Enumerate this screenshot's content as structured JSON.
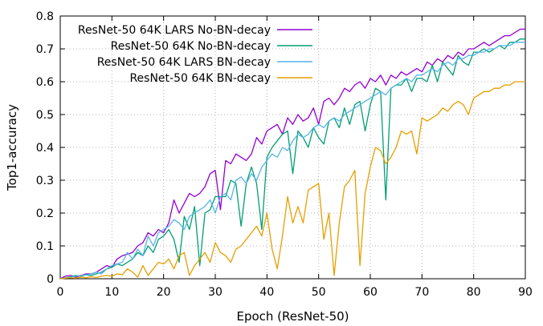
{
  "chart_data": {
    "type": "line",
    "title": "",
    "xlabel": "Epoch (ResNet-50)",
    "ylabel": "Top1-accuracy",
    "xlim": [
      0,
      90
    ],
    "ylim": [
      0,
      0.8
    ],
    "xticks": [
      0,
      10,
      20,
      30,
      40,
      50,
      60,
      70,
      80,
      90
    ],
    "yticks": [
      0,
      0.1,
      0.2,
      0.3,
      0.4,
      0.5,
      0.6,
      0.7,
      0.8
    ],
    "xtick_labels": [
      "0",
      "10",
      "20",
      "30",
      "40",
      "50",
      "60",
      "70",
      "80",
      "90"
    ],
    "ytick_labels": [
      "0",
      "0.1",
      "0.2",
      "0.3",
      "0.4",
      "0.5",
      "0.6",
      "0.7",
      "0.8"
    ],
    "grid": true,
    "legend_position": "top-left",
    "series": [
      {
        "name": "ResNet-50 64K LARS No-BN-decay",
        "color": "#9400d3",
        "x": [
          0,
          1,
          2,
          3,
          4,
          5,
          6,
          7,
          8,
          9,
          10,
          11,
          12,
          13,
          14,
          15,
          16,
          17,
          18,
          19,
          20,
          21,
          22,
          23,
          24,
          25,
          26,
          27,
          28,
          29,
          30,
          31,
          32,
          33,
          34,
          35,
          36,
          37,
          38,
          39,
          40,
          41,
          42,
          43,
          44,
          45,
          46,
          47,
          48,
          49,
          50,
          51,
          52,
          53,
          54,
          55,
          56,
          57,
          58,
          59,
          60,
          61,
          62,
          63,
          64,
          65,
          66,
          67,
          68,
          69,
          70,
          71,
          72,
          73,
          74,
          75,
          76,
          77,
          78,
          79,
          80,
          81,
          82,
          83,
          84,
          85,
          86,
          87,
          88,
          89,
          90
        ],
        "y": [
          0.0,
          0.008,
          0.01,
          0.005,
          0.01,
          0.015,
          0.015,
          0.02,
          0.03,
          0.04,
          0.035,
          0.06,
          0.07,
          0.075,
          0.08,
          0.1,
          0.11,
          0.14,
          0.13,
          0.15,
          0.14,
          0.17,
          0.24,
          0.2,
          0.23,
          0.26,
          0.25,
          0.26,
          0.28,
          0.32,
          0.33,
          0.21,
          0.36,
          0.35,
          0.38,
          0.37,
          0.36,
          0.38,
          0.43,
          0.41,
          0.45,
          0.46,
          0.47,
          0.44,
          0.49,
          0.47,
          0.5,
          0.48,
          0.49,
          0.52,
          0.47,
          0.54,
          0.55,
          0.53,
          0.55,
          0.58,
          0.57,
          0.59,
          0.6,
          0.58,
          0.61,
          0.6,
          0.62,
          0.59,
          0.62,
          0.61,
          0.63,
          0.62,
          0.63,
          0.64,
          0.63,
          0.66,
          0.65,
          0.67,
          0.66,
          0.68,
          0.67,
          0.69,
          0.68,
          0.7,
          0.7,
          0.71,
          0.72,
          0.71,
          0.72,
          0.73,
          0.74,
          0.74,
          0.75,
          0.76,
          0.76
        ]
      },
      {
        "name": "ResNet-50 64K No-BN-decay",
        "color": "#009e73",
        "x": [
          0,
          1,
          2,
          3,
          4,
          5,
          6,
          7,
          8,
          9,
          10,
          11,
          12,
          13,
          14,
          15,
          16,
          17,
          18,
          19,
          20,
          21,
          22,
          23,
          24,
          25,
          26,
          27,
          28,
          29,
          30,
          31,
          32,
          33,
          34,
          35,
          36,
          37,
          38,
          39,
          40,
          41,
          42,
          43,
          44,
          45,
          46,
          47,
          48,
          49,
          50,
          51,
          52,
          53,
          54,
          55,
          56,
          57,
          58,
          59,
          60,
          61,
          62,
          63,
          64,
          65,
          66,
          67,
          68,
          69,
          70,
          71,
          72,
          73,
          74,
          75,
          76,
          77,
          78,
          79,
          80,
          81,
          82,
          83,
          84,
          85,
          86,
          87,
          88,
          89,
          90
        ],
        "y": [
          0.0,
          0.003,
          0.006,
          0.01,
          0.008,
          0.012,
          0.01,
          0.015,
          0.02,
          0.03,
          0.035,
          0.045,
          0.04,
          0.05,
          0.06,
          0.08,
          0.07,
          0.1,
          0.08,
          0.12,
          0.13,
          0.15,
          0.12,
          0.05,
          0.19,
          0.15,
          0.22,
          0.04,
          0.2,
          0.21,
          0.25,
          0.25,
          0.25,
          0.3,
          0.29,
          0.16,
          0.29,
          0.34,
          0.29,
          0.15,
          0.37,
          0.4,
          0.42,
          0.44,
          0.45,
          0.32,
          0.45,
          0.43,
          0.4,
          0.46,
          0.43,
          0.41,
          0.48,
          0.49,
          0.46,
          0.52,
          0.47,
          0.53,
          0.54,
          0.45,
          0.53,
          0.58,
          0.57,
          0.24,
          0.58,
          0.59,
          0.59,
          0.61,
          0.57,
          0.61,
          0.61,
          0.6,
          0.65,
          0.6,
          0.66,
          0.64,
          0.62,
          0.68,
          0.66,
          0.65,
          0.69,
          0.69,
          0.7,
          0.69,
          0.7,
          0.71,
          0.7,
          0.72,
          0.72,
          0.73,
          0.73
        ]
      },
      {
        "name": "ResNet-50 64K LARS BN-decay",
        "color": "#56b4e9",
        "x": [
          0,
          1,
          2,
          3,
          4,
          5,
          6,
          7,
          8,
          9,
          10,
          11,
          12,
          13,
          14,
          15,
          16,
          17,
          18,
          19,
          20,
          21,
          22,
          23,
          24,
          25,
          26,
          27,
          28,
          29,
          30,
          31,
          32,
          33,
          34,
          35,
          36,
          37,
          38,
          39,
          40,
          41,
          42,
          43,
          44,
          45,
          46,
          47,
          48,
          49,
          50,
          51,
          52,
          53,
          54,
          55,
          56,
          57,
          58,
          59,
          60,
          61,
          62,
          63,
          64,
          65,
          66,
          67,
          68,
          69,
          70,
          71,
          72,
          73,
          74,
          75,
          76,
          77,
          78,
          79,
          80,
          81,
          82,
          83,
          84,
          85,
          86,
          87,
          88,
          89,
          90
        ],
        "y": [
          0.0,
          0.002,
          0.005,
          0.008,
          0.01,
          0.012,
          0.015,
          0.02,
          0.015,
          0.03,
          0.04,
          0.045,
          0.05,
          0.08,
          0.06,
          0.09,
          0.07,
          0.13,
          0.1,
          0.14,
          0.15,
          0.16,
          0.18,
          0.17,
          0.15,
          0.19,
          0.2,
          0.21,
          0.22,
          0.24,
          0.2,
          0.25,
          0.26,
          0.24,
          0.3,
          0.31,
          0.29,
          0.32,
          0.3,
          0.34,
          0.36,
          0.38,
          0.37,
          0.4,
          0.39,
          0.42,
          0.44,
          0.43,
          0.44,
          0.46,
          0.47,
          0.46,
          0.48,
          0.49,
          0.48,
          0.5,
          0.51,
          0.52,
          0.53,
          0.54,
          0.55,
          0.56,
          0.57,
          0.56,
          0.58,
          0.59,
          0.6,
          0.61,
          0.6,
          0.62,
          0.62,
          0.63,
          0.64,
          0.63,
          0.65,
          0.66,
          0.65,
          0.67,
          0.67,
          0.68,
          0.68,
          0.69,
          0.69,
          0.7,
          0.7,
          0.71,
          0.71,
          0.71,
          0.72,
          0.72,
          0.72
        ]
      },
      {
        "name": "ResNet-50 64K BN-decay",
        "color": "#e69f00",
        "x": [
          0,
          1,
          2,
          3,
          4,
          5,
          6,
          7,
          8,
          9,
          10,
          11,
          12,
          13,
          14,
          15,
          16,
          17,
          18,
          19,
          20,
          21,
          22,
          23,
          24,
          25,
          26,
          27,
          28,
          29,
          30,
          31,
          32,
          33,
          34,
          35,
          36,
          37,
          38,
          39,
          40,
          41,
          42,
          43,
          44,
          45,
          46,
          47,
          48,
          49,
          50,
          51,
          52,
          53,
          54,
          55,
          56,
          57,
          58,
          59,
          60,
          61,
          62,
          63,
          64,
          65,
          66,
          67,
          68,
          69,
          70,
          71,
          72,
          73,
          74,
          75,
          76,
          77,
          78,
          79,
          80,
          81,
          82,
          83,
          84,
          85,
          86,
          87,
          88,
          89,
          90
        ],
        "y": [
          0.0,
          0.002,
          0.003,
          0.002,
          0.005,
          0.003,
          0.006,
          0.004,
          0.008,
          0.01,
          0.008,
          0.015,
          0.012,
          0.03,
          0.02,
          0.005,
          0.04,
          0.01,
          0.03,
          0.05,
          0.045,
          0.06,
          0.03,
          0.07,
          0.08,
          0.01,
          0.04,
          0.06,
          0.08,
          0.05,
          0.11,
          0.08,
          0.07,
          0.05,
          0.09,
          0.1,
          0.12,
          0.14,
          0.16,
          0.13,
          0.2,
          0.09,
          0.03,
          0.13,
          0.25,
          0.17,
          0.22,
          0.17,
          0.27,
          0.28,
          0.29,
          0.12,
          0.2,
          0.01,
          0.17,
          0.28,
          0.3,
          0.33,
          0.04,
          0.26,
          0.34,
          0.4,
          0.39,
          0.35,
          0.37,
          0.4,
          0.45,
          0.44,
          0.45,
          0.38,
          0.49,
          0.48,
          0.49,
          0.5,
          0.52,
          0.51,
          0.53,
          0.54,
          0.53,
          0.5,
          0.55,
          0.56,
          0.57,
          0.57,
          0.58,
          0.58,
          0.59,
          0.59,
          0.6,
          0.6,
          0.6
        ]
      }
    ]
  }
}
